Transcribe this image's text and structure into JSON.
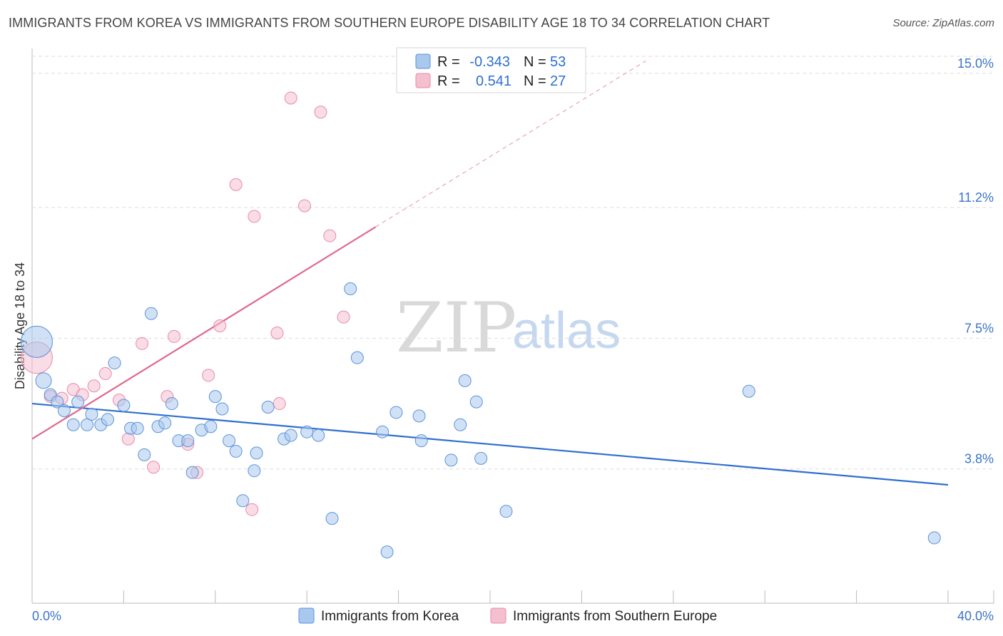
{
  "title": "IMMIGRANTS FROM KOREA VS IMMIGRANTS FROM SOUTHERN EUROPE DISABILITY AGE 18 TO 34 CORRELATION CHART",
  "source": "Source: ZipAtlas.com",
  "watermark": {
    "zip": "ZIP",
    "atlas": "atlas"
  },
  "legend": {
    "korea": {
      "r_label": "R =",
      "r_value": "-0.343",
      "n_label": "N =",
      "n_value": "53"
    },
    "seur": {
      "r_label": "R =",
      "r_value": "0.541",
      "n_label": "N =",
      "n_value": "27"
    }
  },
  "chart_data": {
    "type": "scatter",
    "title": "IMMIGRANTS FROM KOREA VS IMMIGRANTS FROM SOUTHERN EUROPE DISABILITY AGE 18 TO 34 CORRELATION CHART",
    "xlabel": "",
    "ylabel": "Disability Age 18 to 34",
    "xlim": [
      0,
      40
    ],
    "ylim": [
      0,
      15.5
    ],
    "x_tick_labels": [
      "0.0%",
      "40.0%"
    ],
    "y_ticks": [
      3.8,
      7.5,
      11.2,
      15.0
    ],
    "y_tick_labels": [
      "3.8%",
      "7.5%",
      "11.2%",
      "15.0%"
    ],
    "series": [
      {
        "name": "Immigrants from Korea",
        "color": "#5b93dc",
        "fill": "#a9c8ee",
        "r": -0.343,
        "n": 53,
        "trend": {
          "x": [
            0,
            40
          ],
          "y": [
            5.65,
            3.35
          ]
        },
        "points": [
          [
            0.2,
            7.4,
            3
          ],
          [
            0.5,
            6.3,
            2
          ],
          [
            0.8,
            5.9,
            1
          ],
          [
            1.1,
            5.7,
            1
          ],
          [
            1.4,
            5.45,
            1
          ],
          [
            1.8,
            5.05,
            1
          ],
          [
            2.0,
            5.7,
            1
          ],
          [
            2.4,
            5.05,
            1
          ],
          [
            2.6,
            5.35,
            1
          ],
          [
            3.0,
            5.05,
            1
          ],
          [
            3.3,
            5.2,
            1
          ],
          [
            3.6,
            6.8,
            1
          ],
          [
            4.0,
            5.6,
            1
          ],
          [
            4.3,
            4.95,
            1
          ],
          [
            4.6,
            4.95,
            1
          ],
          [
            4.9,
            4.2,
            1
          ],
          [
            5.2,
            8.2,
            1
          ],
          [
            5.5,
            5.0,
            1
          ],
          [
            5.8,
            5.1,
            1
          ],
          [
            6.1,
            5.65,
            1
          ],
          [
            6.4,
            4.6,
            1
          ],
          [
            6.8,
            4.6,
            1
          ],
          [
            7.0,
            3.7,
            1
          ],
          [
            7.4,
            4.9,
            1
          ],
          [
            7.8,
            5.0,
            1
          ],
          [
            8.0,
            5.85,
            1
          ],
          [
            8.3,
            5.5,
            1
          ],
          [
            8.6,
            4.6,
            1
          ],
          [
            8.9,
            4.3,
            1
          ],
          [
            9.2,
            2.9,
            1
          ],
          [
            9.7,
            3.75,
            1
          ],
          [
            9.8,
            4.25,
            1
          ],
          [
            10.3,
            5.55,
            1
          ],
          [
            11.0,
            4.65,
            1
          ],
          [
            11.3,
            4.75,
            1
          ],
          [
            12.0,
            4.85,
            1
          ],
          [
            12.5,
            4.75,
            1
          ],
          [
            13.1,
            2.4,
            1
          ],
          [
            13.9,
            8.9,
            1
          ],
          [
            14.2,
            6.95,
            1
          ],
          [
            15.3,
            4.85,
            1
          ],
          [
            15.5,
            1.45,
            1
          ],
          [
            15.9,
            5.4,
            1
          ],
          [
            16.9,
            5.3,
            1
          ],
          [
            17.0,
            4.6,
            1
          ],
          [
            18.3,
            4.05,
            1
          ],
          [
            18.7,
            5.05,
            1
          ],
          [
            18.9,
            6.3,
            1
          ],
          [
            19.4,
            5.7,
            1
          ],
          [
            19.6,
            4.1,
            1
          ],
          [
            20.7,
            2.6,
            1
          ],
          [
            31.3,
            6.0,
            1
          ],
          [
            39.4,
            1.85,
            1
          ]
        ]
      },
      {
        "name": "Immigrants from Southern Europe",
        "color": "#e98aa9",
        "fill": "#f4bfcf",
        "r": 0.541,
        "n": 27,
        "trend": {
          "x": [
            0,
            15.0
          ],
          "y": [
            4.65,
            10.65
          ]
        },
        "trend_ext": {
          "x": [
            15.0,
            26.8
          ],
          "y": [
            10.65,
            15.35
          ]
        },
        "points": [
          [
            0.2,
            6.95,
            3
          ],
          [
            0.8,
            5.85,
            1
          ],
          [
            1.3,
            5.8,
            1
          ],
          [
            1.8,
            6.05,
            1
          ],
          [
            2.2,
            5.9,
            1
          ],
          [
            2.7,
            6.15,
            1
          ],
          [
            3.2,
            6.5,
            1
          ],
          [
            3.8,
            5.75,
            1
          ],
          [
            4.2,
            4.65,
            1
          ],
          [
            4.8,
            7.35,
            1
          ],
          [
            5.3,
            3.85,
            1
          ],
          [
            5.9,
            5.85,
            1
          ],
          [
            6.2,
            7.55,
            1
          ],
          [
            6.8,
            4.5,
            1
          ],
          [
            7.2,
            3.7,
            1
          ],
          [
            7.7,
            6.45,
            1
          ],
          [
            8.2,
            7.85,
            1
          ],
          [
            8.9,
            11.85,
            1
          ],
          [
            9.6,
            2.65,
            1
          ],
          [
            9.7,
            10.95,
            1
          ],
          [
            10.7,
            7.65,
            1
          ],
          [
            10.8,
            5.65,
            1
          ],
          [
            11.3,
            14.3,
            1
          ],
          [
            12.6,
            13.9,
            1
          ],
          [
            11.9,
            11.25,
            1
          ],
          [
            13.0,
            10.4,
            1
          ],
          [
            13.6,
            8.1,
            1
          ]
        ]
      }
    ]
  },
  "bottom_legend": {
    "korea": "Immigrants from Korea",
    "seur": "Immigrants from Southern Europe"
  }
}
